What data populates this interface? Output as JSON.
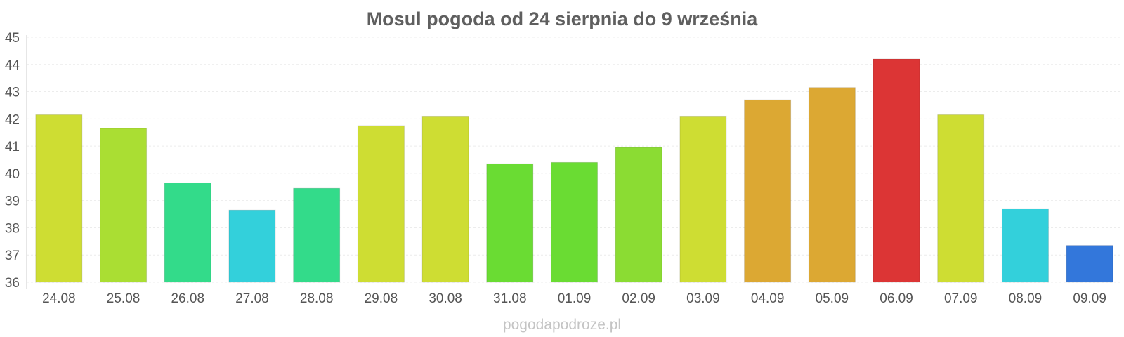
{
  "chart_data": {
    "type": "bar",
    "title": "Mosul pogoda od 24 sierpnia do 9 września",
    "xlabel": "",
    "ylabel": "",
    "ylim": [
      36,
      45
    ],
    "yticks": [
      36,
      37,
      38,
      39,
      40,
      41,
      42,
      43,
      44,
      45
    ],
    "grid": true,
    "categories": [
      "24.08",
      "25.08",
      "26.08",
      "27.08",
      "28.08",
      "29.08",
      "30.08",
      "31.08",
      "01.09",
      "02.09",
      "03.09",
      "04.09",
      "05.09",
      "06.09",
      "07.09",
      "08.09",
      "09.09"
    ],
    "values": [
      42.15,
      41.65,
      39.65,
      38.65,
      39.45,
      41.75,
      42.1,
      40.35,
      40.4,
      40.95,
      42.1,
      42.7,
      43.15,
      44.2,
      42.15,
      38.7,
      37.35
    ],
    "colors": [
      "#cedd33",
      "#aade33",
      "#33db8a",
      "#33d0db",
      "#33db8a",
      "#cedd33",
      "#cedd33",
      "#6adc33",
      "#6adc33",
      "#8bdc33",
      "#cedd33",
      "#dca833",
      "#dca833",
      "#dc3535",
      "#cedd33",
      "#33d0db",
      "#3377db"
    ]
  },
  "watermark": "pogodapodroze.pl"
}
